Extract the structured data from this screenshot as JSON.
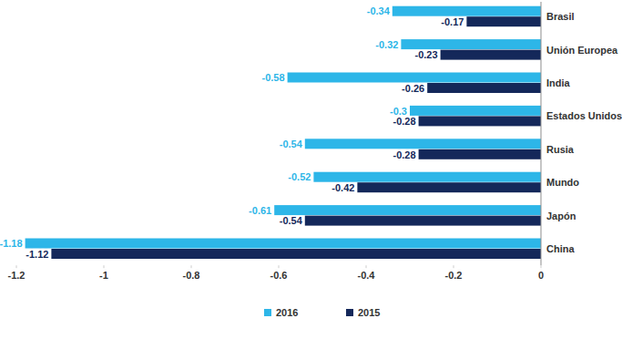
{
  "chart_data": {
    "type": "bar",
    "orientation": "horizontal",
    "categories": [
      "Brasil",
      "Unión Europea",
      "India",
      "Estados Unidos",
      "Rusia",
      "Mundo",
      "Japón",
      "China"
    ],
    "series": [
      {
        "name": "2016",
        "color": "#2db6e8",
        "values": [
          -0.34,
          -0.32,
          -0.58,
          -0.3,
          -0.54,
          -0.52,
          -0.61,
          -1.18
        ]
      },
      {
        "name": "2015",
        "color": "#14285a",
        "values": [
          -0.17,
          -0.23,
          -0.26,
          -0.28,
          -0.28,
          -0.42,
          -0.54,
          -1.12
        ]
      }
    ],
    "xlim": [
      -1.2,
      0
    ],
    "xticks": [
      -1.2,
      -1,
      -0.8,
      -0.6,
      -0.4,
      -0.2,
      0
    ],
    "data_labels": true,
    "grid": false,
    "legend": "bottom"
  }
}
